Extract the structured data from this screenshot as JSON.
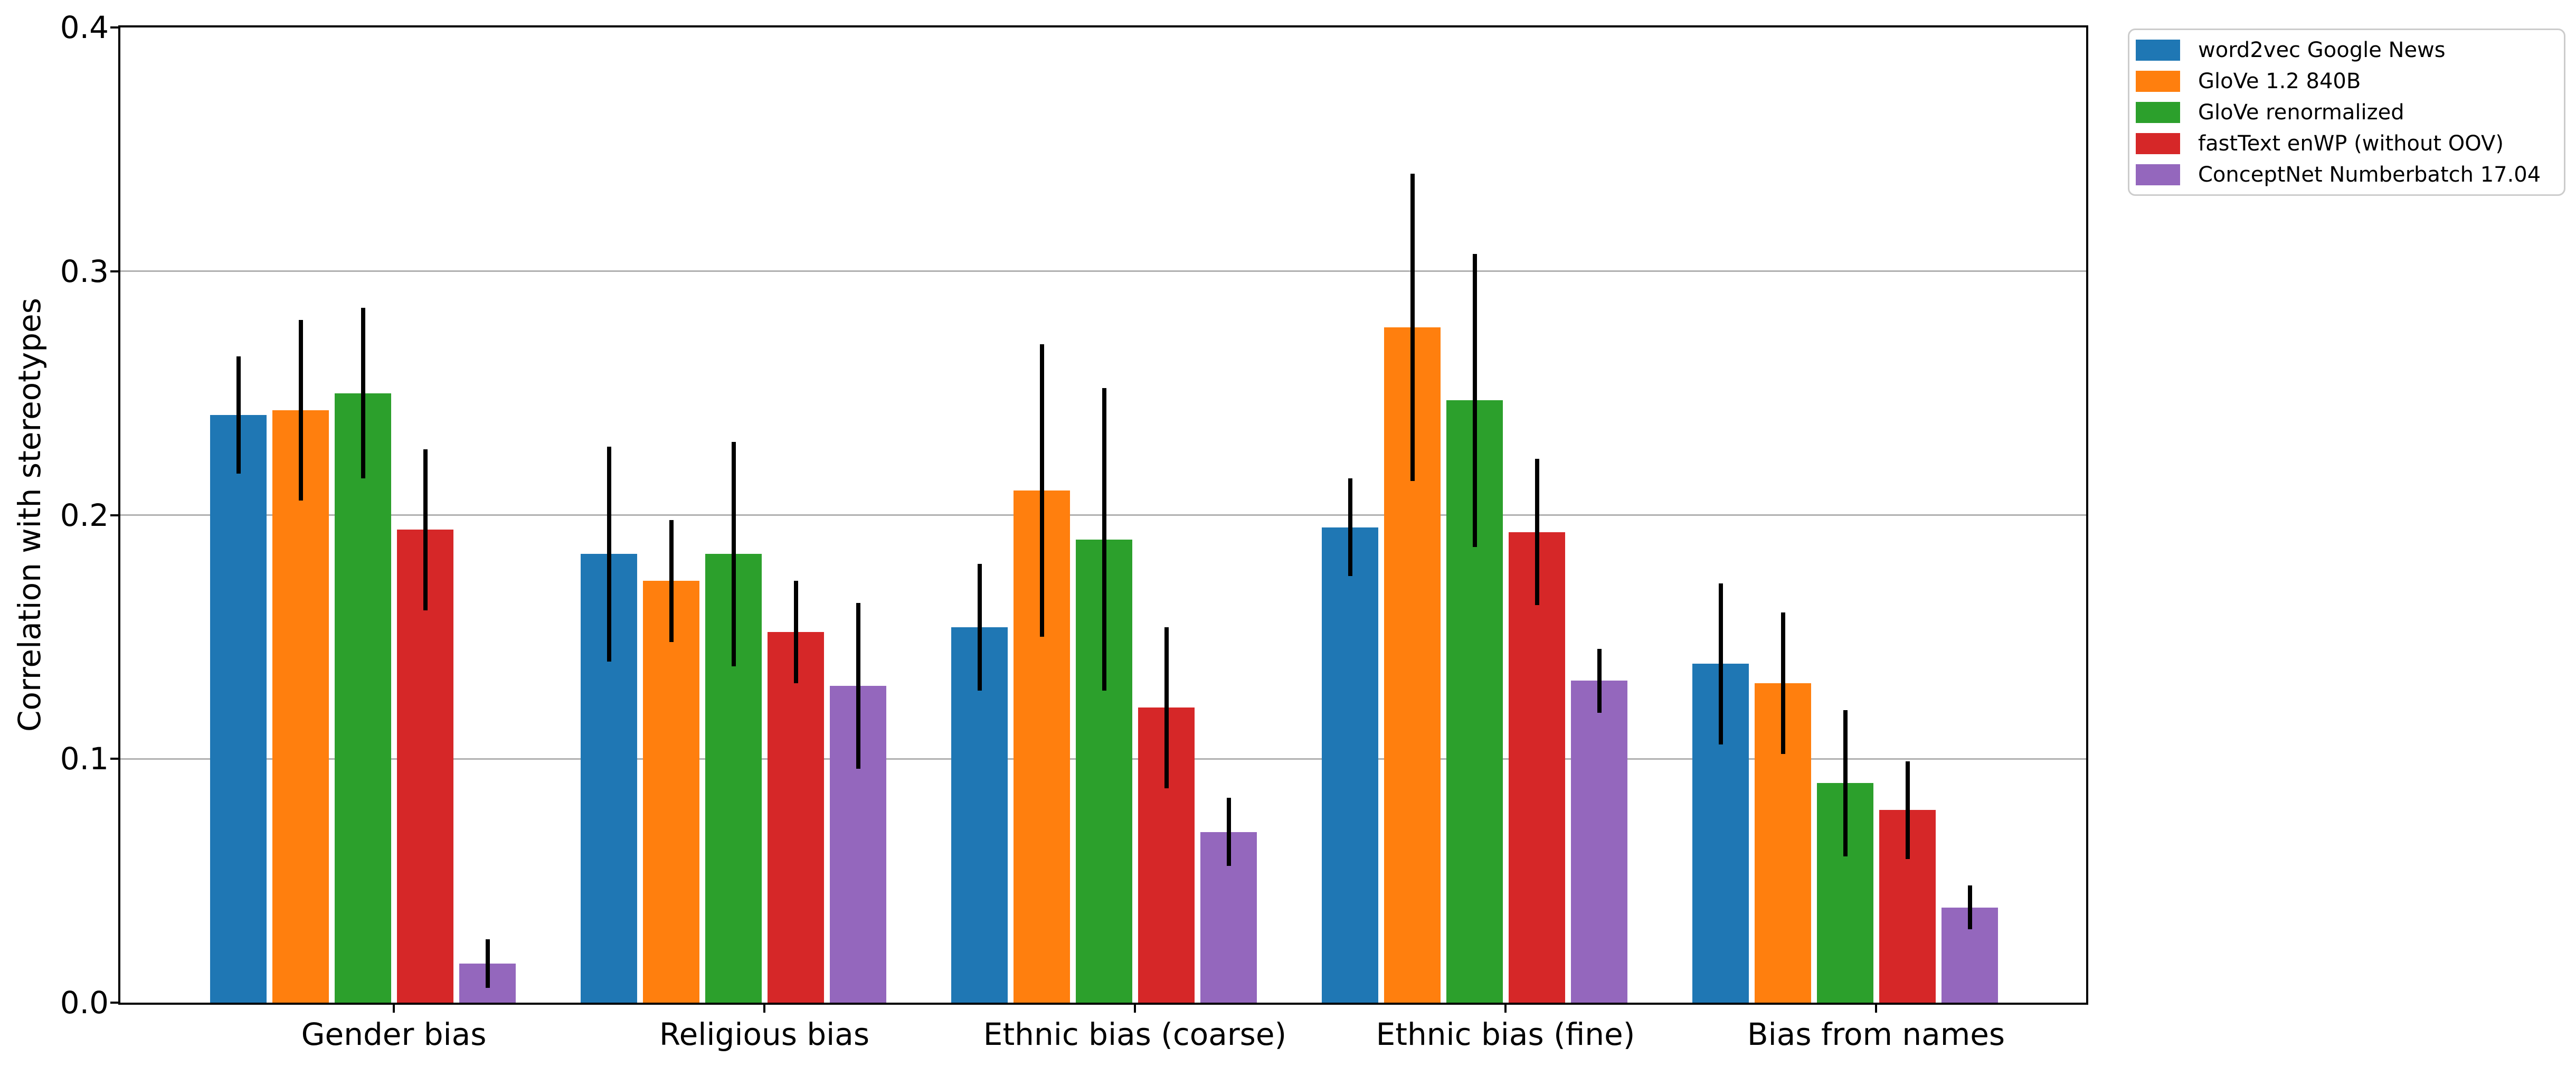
{
  "figure": {
    "background": "#ffffff",
    "text_color": "#000000",
    "grid_color": "#b0b0b0",
    "spine_color": "#000000",
    "error_bar_color": "#000000"
  },
  "chart_data": {
    "type": "bar",
    "title": "",
    "xlabel": "",
    "ylabel": "Correlation with stereotypes",
    "ylim": [
      0.0,
      0.4
    ],
    "ytick_values": [
      0.0,
      0.1,
      0.2,
      0.3,
      0.4
    ],
    "ytick_labels": [
      "0.0",
      "0.1",
      "0.2",
      "0.3",
      "0.4"
    ],
    "grid": true,
    "grid_values": [
      0.1,
      0.2,
      0.3
    ],
    "legend_position": "outside-top-right",
    "categories": [
      "Gender bias",
      "Religious bias",
      "Ethnic bias (coarse)",
      "Ethnic bias (fine)",
      "Bias from names"
    ],
    "series": [
      {
        "name": "word2vec Google News",
        "color": "#1f77b4",
        "values": [
          0.241,
          0.184,
          0.154,
          0.195,
          0.139
        ],
        "errors": [
          0.024,
          0.044,
          0.026,
          0.02,
          0.033
        ]
      },
      {
        "name": "GloVe 1.2 840B",
        "color": "#ff7f0e",
        "values": [
          0.243,
          0.173,
          0.21,
          0.277,
          0.131
        ],
        "errors": [
          0.037,
          0.025,
          0.06,
          0.063,
          0.029
        ]
      },
      {
        "name": "GloVe renormalized",
        "color": "#2ca02c",
        "values": [
          0.25,
          0.184,
          0.19,
          0.247,
          0.09
        ],
        "errors": [
          0.035,
          0.046,
          0.062,
          0.06,
          0.03
        ]
      },
      {
        "name": "fastText enWP (without OOV)",
        "color": "#d62728",
        "values": [
          0.194,
          0.152,
          0.121,
          0.193,
          0.079
        ],
        "errors": [
          0.033,
          0.021,
          0.033,
          0.03,
          0.02
        ]
      },
      {
        "name": "ConceptNet Numberbatch 17.04",
        "color": "#9467bd",
        "values": [
          0.016,
          0.13,
          0.07,
          0.132,
          0.039
        ],
        "errors": [
          0.01,
          0.034,
          0.014,
          0.013,
          0.009
        ]
      }
    ]
  }
}
